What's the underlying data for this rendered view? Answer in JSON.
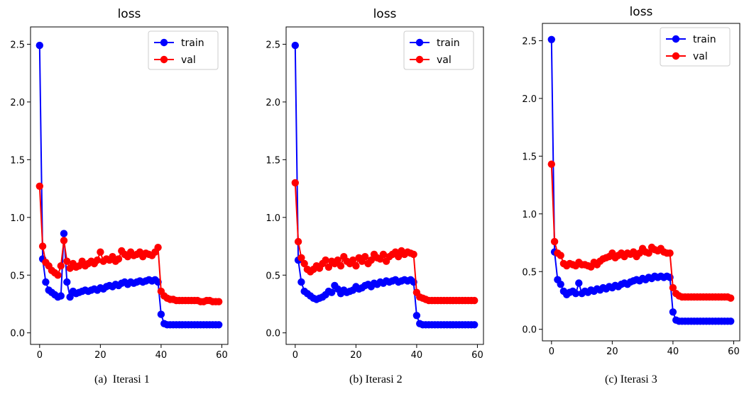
{
  "chart_data": [
    {
      "type": "line",
      "title": "loss",
      "caption": "(a)  Iterasi 1",
      "xlim": [
        -3,
        62
      ],
      "ylim": [
        -0.1,
        2.65
      ],
      "xticks": [
        0,
        20,
        40,
        60
      ],
      "yticks": [
        0.0,
        0.5,
        1.0,
        1.5,
        2.0,
        2.5
      ],
      "ytick_labels": [
        "0.0",
        "0.5",
        "1.0",
        "1.5",
        "2.0",
        "2.5"
      ],
      "grid": false,
      "legend_position": "top-right",
      "x": [
        0,
        1,
        2,
        3,
        4,
        5,
        6,
        7,
        8,
        9,
        10,
        11,
        12,
        13,
        14,
        15,
        16,
        17,
        18,
        19,
        20,
        21,
        22,
        23,
        24,
        25,
        26,
        27,
        28,
        29,
        30,
        31,
        32,
        33,
        34,
        35,
        36,
        37,
        38,
        39,
        40,
        41,
        42,
        43,
        44,
        45,
        46,
        47,
        48,
        49,
        50,
        51,
        52,
        53,
        54,
        55,
        56,
        57,
        58,
        59
      ],
      "series": [
        {
          "name": "train",
          "color": "#0000ff",
          "values": [
            2.49,
            0.64,
            0.44,
            0.37,
            0.35,
            0.33,
            0.31,
            0.32,
            0.86,
            0.44,
            0.31,
            0.36,
            0.34,
            0.35,
            0.36,
            0.37,
            0.36,
            0.37,
            0.38,
            0.37,
            0.39,
            0.38,
            0.4,
            0.41,
            0.4,
            0.42,
            0.41,
            0.43,
            0.44,
            0.42,
            0.44,
            0.43,
            0.44,
            0.45,
            0.44,
            0.45,
            0.46,
            0.45,
            0.46,
            0.44,
            0.16,
            0.08,
            0.07,
            0.07,
            0.07,
            0.07,
            0.07,
            0.07,
            0.07,
            0.07,
            0.07,
            0.07,
            0.07,
            0.07,
            0.07,
            0.07,
            0.07,
            0.07,
            0.07,
            0.07
          ]
        },
        {
          "name": "val",
          "color": "#ff0000",
          "values": [
            1.27,
            0.75,
            0.61,
            0.58,
            0.54,
            0.52,
            0.5,
            0.58,
            0.8,
            0.62,
            0.56,
            0.6,
            0.57,
            0.58,
            0.62,
            0.58,
            0.6,
            0.62,
            0.6,
            0.63,
            0.7,
            0.62,
            0.64,
            0.63,
            0.66,
            0.62,
            0.64,
            0.71,
            0.68,
            0.66,
            0.7,
            0.67,
            0.68,
            0.7,
            0.66,
            0.69,
            0.68,
            0.67,
            0.7,
            0.74,
            0.36,
            0.32,
            0.3,
            0.29,
            0.29,
            0.28,
            0.28,
            0.28,
            0.28,
            0.28,
            0.28,
            0.28,
            0.28,
            0.27,
            0.27,
            0.28,
            0.28,
            0.27,
            0.27,
            0.27
          ]
        }
      ]
    },
    {
      "type": "line",
      "title": "loss",
      "caption": "(b) Iterasi 2",
      "xlim": [
        -3,
        62
      ],
      "ylim": [
        -0.1,
        2.65
      ],
      "xticks": [
        0,
        20,
        40,
        60
      ],
      "yticks": [
        0.0,
        0.5,
        1.0,
        1.5,
        2.0,
        2.5
      ],
      "ytick_labels": [
        "0.0",
        "0.5",
        "1.0",
        "1.5",
        "2.0",
        "2.5"
      ],
      "grid": false,
      "legend_position": "top-right",
      "x": [
        0,
        1,
        2,
        3,
        4,
        5,
        6,
        7,
        8,
        9,
        10,
        11,
        12,
        13,
        14,
        15,
        16,
        17,
        18,
        19,
        20,
        21,
        22,
        23,
        24,
        25,
        26,
        27,
        28,
        29,
        30,
        31,
        32,
        33,
        34,
        35,
        36,
        37,
        38,
        39,
        40,
        41,
        42,
        43,
        44,
        45,
        46,
        47,
        48,
        49,
        50,
        51,
        52,
        53,
        54,
        55,
        56,
        57,
        58,
        59
      ],
      "series": [
        {
          "name": "train",
          "color": "#0000ff",
          "values": [
            2.49,
            0.63,
            0.44,
            0.36,
            0.34,
            0.32,
            0.3,
            0.29,
            0.3,
            0.31,
            0.33,
            0.36,
            0.35,
            0.41,
            0.38,
            0.34,
            0.37,
            0.35,
            0.36,
            0.37,
            0.4,
            0.38,
            0.39,
            0.41,
            0.42,
            0.4,
            0.43,
            0.42,
            0.44,
            0.43,
            0.45,
            0.44,
            0.45,
            0.46,
            0.44,
            0.45,
            0.46,
            0.45,
            0.46,
            0.44,
            0.15,
            0.08,
            0.07,
            0.07,
            0.07,
            0.07,
            0.07,
            0.07,
            0.07,
            0.07,
            0.07,
            0.07,
            0.07,
            0.07,
            0.07,
            0.07,
            0.07,
            0.07,
            0.07,
            0.07
          ]
        },
        {
          "name": "val",
          "color": "#ff0000",
          "values": [
            1.3,
            0.79,
            0.65,
            0.6,
            0.55,
            0.53,
            0.55,
            0.58,
            0.56,
            0.6,
            0.63,
            0.57,
            0.62,
            0.6,
            0.63,
            0.58,
            0.66,
            0.62,
            0.6,
            0.63,
            0.58,
            0.65,
            0.62,
            0.66,
            0.6,
            0.63,
            0.68,
            0.65,
            0.64,
            0.68,
            0.62,
            0.66,
            0.68,
            0.7,
            0.66,
            0.71,
            0.68,
            0.7,
            0.69,
            0.68,
            0.35,
            0.31,
            0.3,
            0.29,
            0.28,
            0.28,
            0.28,
            0.28,
            0.28,
            0.28,
            0.28,
            0.28,
            0.28,
            0.28,
            0.28,
            0.28,
            0.28,
            0.28,
            0.28,
            0.28
          ]
        }
      ]
    },
    {
      "type": "line",
      "title": "loss",
      "caption": "(c) Iterasi 3",
      "xlim": [
        -3,
        62
      ],
      "ylim": [
        -0.1,
        2.65
      ],
      "xticks": [
        0,
        20,
        40,
        60
      ],
      "yticks": [
        0.0,
        0.5,
        1.0,
        1.5,
        2.0,
        2.5
      ],
      "ytick_labels": [
        "0.0",
        "0.5",
        "1.0",
        "1.5",
        "2.0",
        "2.5"
      ],
      "grid": false,
      "legend_position": "top-right",
      "x": [
        0,
        1,
        2,
        3,
        4,
        5,
        6,
        7,
        8,
        9,
        10,
        11,
        12,
        13,
        14,
        15,
        16,
        17,
        18,
        19,
        20,
        21,
        22,
        23,
        24,
        25,
        26,
        27,
        28,
        29,
        30,
        31,
        32,
        33,
        34,
        35,
        36,
        37,
        38,
        39,
        40,
        41,
        42,
        43,
        44,
        45,
        46,
        47,
        48,
        49,
        50,
        51,
        52,
        53,
        54,
        55,
        56,
        57,
        58,
        59
      ],
      "series": [
        {
          "name": "train",
          "color": "#0000ff",
          "values": [
            2.51,
            0.67,
            0.43,
            0.39,
            0.33,
            0.3,
            0.32,
            0.33,
            0.31,
            0.4,
            0.31,
            0.33,
            0.32,
            0.34,
            0.33,
            0.35,
            0.34,
            0.36,
            0.35,
            0.37,
            0.36,
            0.38,
            0.37,
            0.39,
            0.4,
            0.39,
            0.41,
            0.42,
            0.43,
            0.42,
            0.44,
            0.43,
            0.45,
            0.44,
            0.46,
            0.45,
            0.46,
            0.45,
            0.46,
            0.45,
            0.15,
            0.08,
            0.07,
            0.07,
            0.07,
            0.07,
            0.07,
            0.07,
            0.07,
            0.07,
            0.07,
            0.07,
            0.07,
            0.07,
            0.07,
            0.07,
            0.07,
            0.07,
            0.07,
            0.07
          ]
        },
        {
          "name": "val",
          "color": "#ff0000",
          "values": [
            1.43,
            0.76,
            0.66,
            0.64,
            0.57,
            0.55,
            0.57,
            0.56,
            0.55,
            0.58,
            0.56,
            0.56,
            0.55,
            0.54,
            0.58,
            0.56,
            0.59,
            0.61,
            0.62,
            0.63,
            0.66,
            0.62,
            0.64,
            0.66,
            0.63,
            0.66,
            0.65,
            0.67,
            0.63,
            0.66,
            0.7,
            0.67,
            0.66,
            0.71,
            0.69,
            0.68,
            0.7,
            0.67,
            0.66,
            0.66,
            0.36,
            0.31,
            0.29,
            0.28,
            0.28,
            0.28,
            0.28,
            0.28,
            0.28,
            0.28,
            0.28,
            0.28,
            0.28,
            0.28,
            0.28,
            0.28,
            0.28,
            0.28,
            0.28,
            0.27
          ]
        }
      ]
    }
  ]
}
